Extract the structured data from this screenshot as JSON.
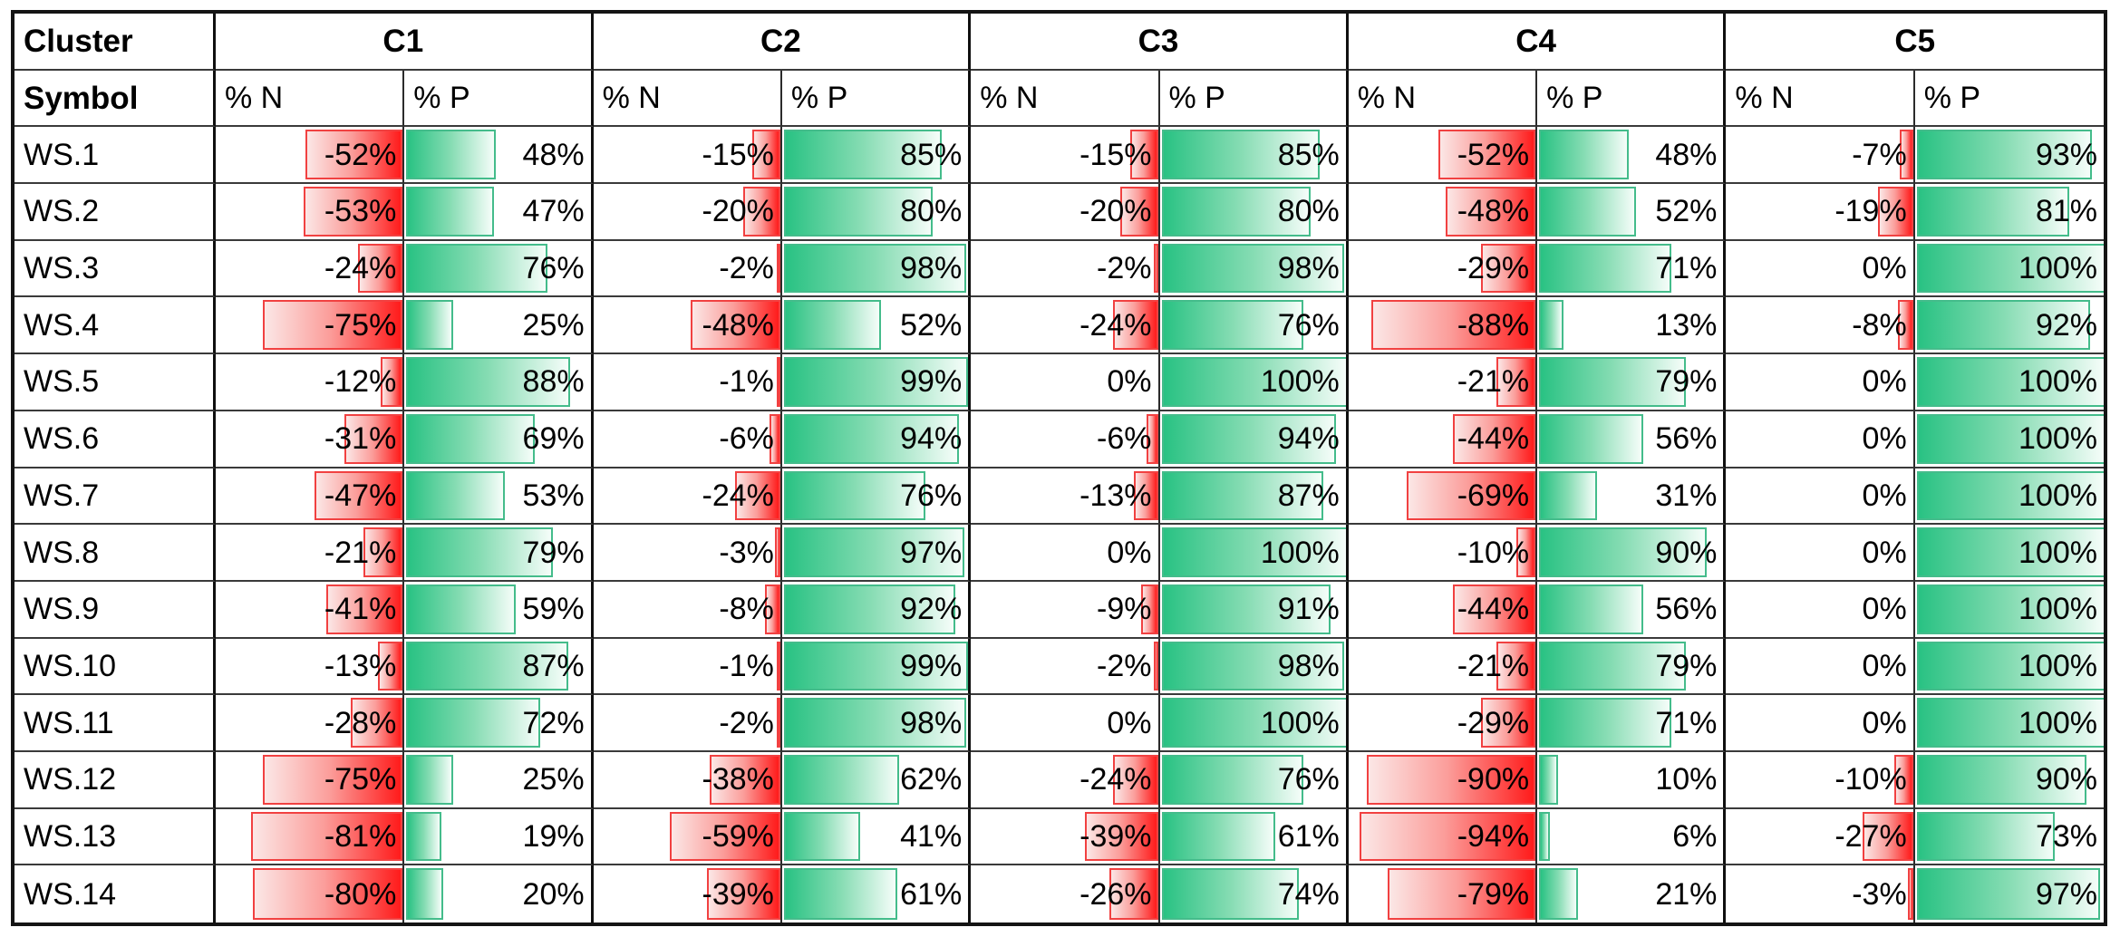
{
  "table": {
    "header": {
      "corner_top": "Cluster",
      "corner_bottom": "Symbol",
      "clusters": [
        "C1",
        "C2",
        "C3",
        "C4",
        "C5"
      ],
      "subcols": [
        "% N",
        "% P"
      ]
    },
    "rows": [
      {
        "symbol": "WS.1",
        "cells": [
          "-52%",
          "48%",
          "-15%",
          "85%",
          "-15%",
          "85%",
          "-52%",
          "48%",
          "-7%",
          "93%"
        ]
      },
      {
        "symbol": "WS.2",
        "cells": [
          "-53%",
          "47%",
          "-20%",
          "80%",
          "-20%",
          "80%",
          "-48%",
          "52%",
          "-19%",
          "81%"
        ]
      },
      {
        "symbol": "WS.3",
        "cells": [
          "-24%",
          "76%",
          "-2%",
          "98%",
          "-2%",
          "98%",
          "-29%",
          "71%",
          "0%",
          "100%"
        ]
      },
      {
        "symbol": "WS.4",
        "cells": [
          "-75%",
          "25%",
          "-48%",
          "52%",
          "-24%",
          "76%",
          "-88%",
          "13%",
          "-8%",
          "92%"
        ]
      },
      {
        "symbol": "WS.5",
        "cells": [
          "-12%",
          "88%",
          "-1%",
          "99%",
          "0%",
          "100%",
          "-21%",
          "79%",
          "0%",
          "100%"
        ]
      },
      {
        "symbol": "WS.6",
        "cells": [
          "-31%",
          "69%",
          "-6%",
          "94%",
          "-6%",
          "94%",
          "-44%",
          "56%",
          "0%",
          "100%"
        ]
      },
      {
        "symbol": "WS.7",
        "cells": [
          "-47%",
          "53%",
          "-24%",
          "76%",
          "-13%",
          "87%",
          "-69%",
          "31%",
          "0%",
          "100%"
        ]
      },
      {
        "symbol": "WS.8",
        "cells": [
          "-21%",
          "79%",
          "-3%",
          "97%",
          "0%",
          "100%",
          "-10%",
          "90%",
          "0%",
          "100%"
        ]
      },
      {
        "symbol": "WS.9",
        "cells": [
          "-41%",
          "59%",
          "-8%",
          "92%",
          "-9%",
          "91%",
          "-44%",
          "56%",
          "0%",
          "100%"
        ]
      },
      {
        "symbol": "WS.10",
        "cells": [
          "-13%",
          "87%",
          "-1%",
          "99%",
          "-2%",
          "98%",
          "-21%",
          "79%",
          "0%",
          "100%"
        ]
      },
      {
        "symbol": "WS.11",
        "cells": [
          "-28%",
          "72%",
          "-2%",
          "98%",
          "0%",
          "100%",
          "-29%",
          "71%",
          "0%",
          "100%"
        ]
      },
      {
        "symbol": "WS.12",
        "cells": [
          "-75%",
          "25%",
          "-38%",
          "62%",
          "-24%",
          "76%",
          "-90%",
          "10%",
          "-10%",
          "90%"
        ]
      },
      {
        "symbol": "WS.13",
        "cells": [
          "-81%",
          "19%",
          "-59%",
          "41%",
          "-39%",
          "61%",
          "-94%",
          "6%",
          "-27%",
          "73%"
        ]
      },
      {
        "symbol": "WS.14",
        "cells": [
          "-80%",
          "20%",
          "-39%",
          "61%",
          "-26%",
          "74%",
          "-79%",
          "21%",
          "-3%",
          "97%"
        ]
      }
    ]
  },
  "colors": {
    "negative_bar_solid": "#ff1b1b",
    "negative_bar_light": "#fbe7e6",
    "negative_bar_border": "#f14141",
    "positive_bar_solid": "#29c283",
    "positive_bar_light": "#f5fdf9",
    "positive_bar_border": "#44bc8b",
    "grid_line": "#2b2b2b",
    "outer_border": "#141414",
    "text": "#000000"
  },
  "chart_data": {
    "type": "table",
    "title": "% N (negative, red right-anchored data bars) and % P (positive, green left-anchored data bars) per workstream symbol across clusters C1-C5",
    "row_labels": [
      "WS.1",
      "WS.2",
      "WS.3",
      "WS.4",
      "WS.5",
      "WS.6",
      "WS.7",
      "WS.8",
      "WS.9",
      "WS.10",
      "WS.11",
      "WS.12",
      "WS.13",
      "WS.14"
    ],
    "columns": [
      "C1 % N",
      "C1 % P",
      "C2 % N",
      "C2 % P",
      "C3 % N",
      "C3 % P",
      "C4 % N",
      "C4 % P",
      "C5 % N",
      "C5 % P"
    ],
    "values_percent": [
      [
        -52,
        48,
        -15,
        85,
        -15,
        85,
        -52,
        48,
        -7,
        93
      ],
      [
        -53,
        47,
        -20,
        80,
        -20,
        80,
        -48,
        52,
        -19,
        81
      ],
      [
        -24,
        76,
        -2,
        98,
        -2,
        98,
        -29,
        71,
        0,
        100
      ],
      [
        -75,
        25,
        -48,
        52,
        -24,
        76,
        -88,
        13,
        -8,
        92
      ],
      [
        -12,
        88,
        -1,
        99,
        0,
        100,
        -21,
        79,
        0,
        100
      ],
      [
        -31,
        69,
        -6,
        94,
        -6,
        94,
        -44,
        56,
        0,
        100
      ],
      [
        -47,
        53,
        -24,
        76,
        -13,
        87,
        -69,
        31,
        0,
        100
      ],
      [
        -21,
        79,
        -3,
        97,
        0,
        100,
        -10,
        90,
        0,
        100
      ],
      [
        -41,
        59,
        -8,
        92,
        -9,
        91,
        -44,
        56,
        0,
        100
      ],
      [
        -13,
        87,
        -1,
        99,
        -2,
        98,
        -21,
        79,
        0,
        100
      ],
      [
        -28,
        72,
        -2,
        98,
        0,
        100,
        -29,
        71,
        0,
        100
      ],
      [
        -75,
        25,
        -38,
        62,
        -24,
        76,
        -90,
        10,
        -10,
        90
      ],
      [
        -81,
        19,
        -59,
        41,
        -39,
        61,
        -94,
        6,
        -27,
        73
      ],
      [
        -80,
        20,
        -39,
        61,
        -26,
        74,
        -79,
        21,
        -3,
        97
      ]
    ],
    "bar_axis": {
      "negative_columns": "0 at right edge, bars grow left",
      "positive_columns": "0 at left edge, bars grow right",
      "range_percent": [
        0,
        100
      ]
    },
    "grid": true,
    "legend": false
  }
}
